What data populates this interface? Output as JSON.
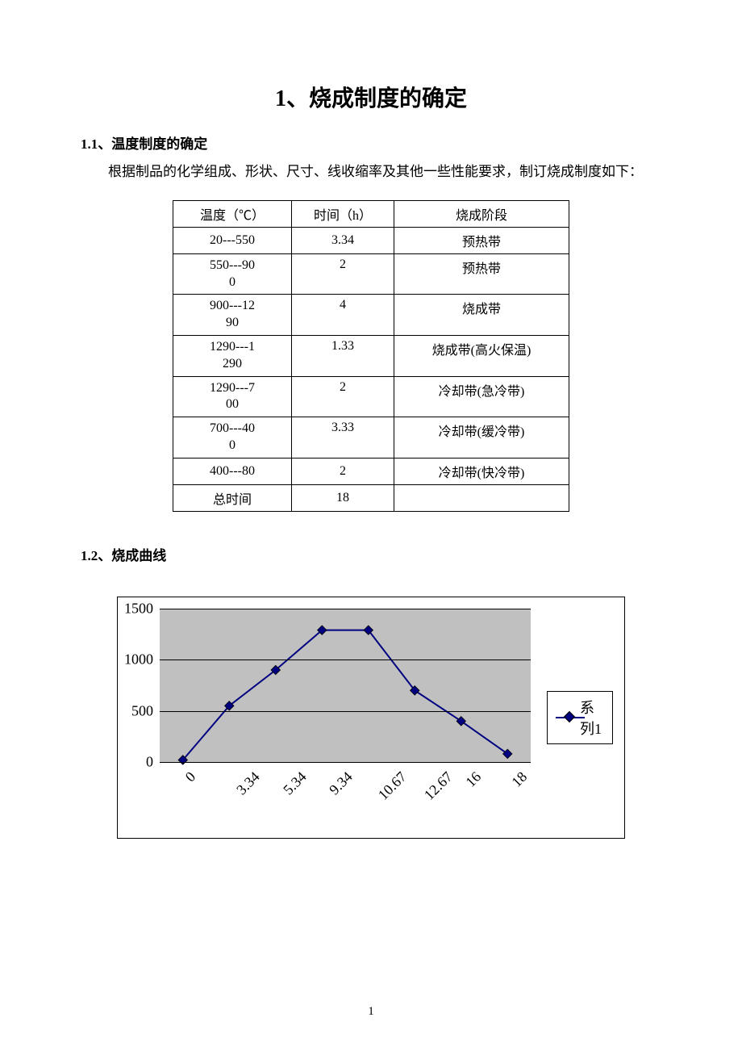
{
  "title": "1、烧成制度的确定",
  "section1_head": "1.1、温度制度的确定",
  "section1_para": "根据制品的化学组成、形状、尺寸、线收缩率及其他一些性能要求，制订烧成制度如下：",
  "table": {
    "headers": [
      "温度（℃）",
      "时间（h）",
      "烧成阶段"
    ],
    "rows": [
      {
        "temp": "20---550",
        "time": "3.34",
        "stage": "预热带",
        "temp_multi": false
      },
      {
        "temp": "550---900",
        "time": "2",
        "stage": "预热带",
        "temp_multi": true,
        "temp_lines": [
          "550---90",
          "0"
        ]
      },
      {
        "temp": "900---1290",
        "time": "4",
        "stage": "烧成带",
        "temp_multi": true,
        "temp_lines": [
          "900---12",
          "90"
        ]
      },
      {
        "temp": "1290---1290",
        "time": "1.33",
        "stage": "烧成带(高火保温)",
        "temp_multi": true,
        "temp_lines": [
          "1290---1",
          "290"
        ]
      },
      {
        "temp": "1290---700",
        "time": "2",
        "stage": "冷却带(急冷带)",
        "temp_multi": true,
        "temp_lines": [
          "1290---7",
          "00"
        ]
      },
      {
        "temp": "700---400",
        "time": "3.33",
        "stage": "冷却带(缓冷带)",
        "temp_multi": true,
        "temp_lines": [
          "700---40",
          "0"
        ]
      },
      {
        "temp": "400---80",
        "time": "2",
        "stage": "冷却带(快冷带)",
        "temp_multi": false
      },
      {
        "temp": "总时间",
        "time": "18",
        "stage": "",
        "temp_multi": false
      }
    ]
  },
  "section2_head": "1.2、烧成曲线",
  "chart": {
    "type": "line",
    "x_labels": [
      "0",
      "3.34",
      "5.34",
      "9.34",
      "10.67",
      "12.67",
      "16",
      "18"
    ],
    "y_values": [
      20,
      550,
      900,
      1290,
      1290,
      700,
      400,
      80
    ],
    "y_ticks": [
      0,
      500,
      1000,
      1500
    ],
    "ylim": [
      0,
      1500
    ],
    "plot_bg": "#c0c0c0",
    "grid_color": "#000000",
    "line_color": "#000080",
    "marker_color": "#000080",
    "marker_border": "#000000",
    "marker_style": "diamond",
    "marker_size": 8,
    "line_width": 2,
    "legend_label": "系列1",
    "x_label_rotation": -45,
    "tick_fontsize": 18
  },
  "page_number": "1"
}
